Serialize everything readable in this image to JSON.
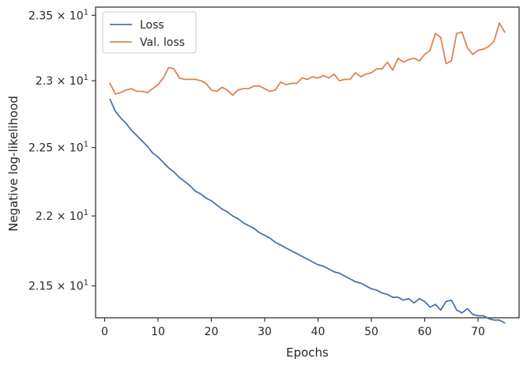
{
  "chart_data": {
    "type": "line",
    "title": "",
    "xlabel": "Epochs",
    "ylabel": "Negative log-likelihood",
    "xlim": [
      -1.7,
      77.7
    ],
    "ylim": [
      21.276,
      23.563
    ],
    "y_scale": "log",
    "grid": false,
    "legend_position": "top-left",
    "x_ticks": [
      0,
      10,
      20,
      30,
      40,
      50,
      60,
      70
    ],
    "x_tick_labels": [
      "0",
      "10",
      "20",
      "30",
      "40",
      "50",
      "60",
      "70"
    ],
    "y_ticks": [
      21.5,
      22.0,
      22.5,
      23.0,
      23.5
    ],
    "y_tick_labels": [
      {
        "base": "2.15",
        "exp": "1"
      },
      {
        "base": "2.2",
        "exp": "1"
      },
      {
        "base": "2.25",
        "exp": "1"
      },
      {
        "base": "2.3",
        "exp": "1"
      },
      {
        "base": "2.35",
        "exp": "1"
      }
    ],
    "x": [
      1,
      2,
      3,
      4,
      5,
      6,
      7,
      8,
      9,
      10,
      11,
      12,
      13,
      14,
      15,
      16,
      17,
      18,
      19,
      20,
      21,
      22,
      23,
      24,
      25,
      26,
      27,
      28,
      29,
      30,
      31,
      32,
      33,
      34,
      35,
      36,
      37,
      38,
      39,
      40,
      41,
      42,
      43,
      44,
      45,
      46,
      47,
      48,
      49,
      50,
      51,
      52,
      53,
      54,
      55,
      56,
      57,
      58,
      59,
      60,
      61,
      62,
      63,
      64,
      65,
      66,
      67,
      68,
      69,
      70,
      71,
      72,
      73,
      74,
      75
    ],
    "series": [
      {
        "name": "Loss",
        "color": "#4c72b0",
        "values": [
          22.86,
          22.77,
          22.72,
          22.68,
          22.63,
          22.59,
          22.55,
          22.51,
          22.46,
          22.43,
          22.39,
          22.35,
          22.32,
          22.28,
          22.25,
          22.22,
          22.18,
          22.16,
          22.13,
          22.11,
          22.08,
          22.05,
          22.03,
          22.0,
          21.98,
          21.95,
          21.93,
          21.91,
          21.88,
          21.86,
          21.84,
          21.81,
          21.79,
          21.77,
          21.75,
          21.73,
          21.71,
          21.69,
          21.67,
          21.65,
          21.64,
          21.62,
          21.6,
          21.59,
          21.57,
          21.55,
          21.53,
          21.52,
          21.5,
          21.48,
          21.47,
          21.45,
          21.44,
          21.42,
          21.42,
          21.4,
          21.41,
          21.38,
          21.41,
          21.39,
          21.35,
          21.37,
          21.33,
          21.39,
          21.4,
          21.33,
          21.31,
          21.34,
          21.3,
          21.29,
          21.29,
          21.27,
          21.26,
          21.26,
          21.24
        ]
      },
      {
        "name": "Val. loss",
        "color": "#dd8452",
        "values": [
          22.98,
          22.9,
          22.91,
          22.93,
          22.94,
          22.92,
          22.92,
          22.91,
          22.94,
          22.97,
          23.02,
          23.1,
          23.09,
          23.02,
          23.01,
          23.01,
          23.01,
          23.0,
          22.98,
          22.93,
          22.92,
          22.95,
          22.93,
          22.89,
          22.93,
          22.94,
          22.94,
          22.96,
          22.96,
          22.94,
          22.92,
          22.93,
          22.99,
          22.97,
          22.98,
          22.98,
          23.02,
          23.01,
          23.03,
          23.02,
          23.04,
          23.02,
          23.05,
          23.0,
          23.01,
          23.01,
          23.06,
          23.03,
          23.05,
          23.06,
          23.09,
          23.09,
          23.14,
          23.08,
          23.17,
          23.14,
          23.16,
          23.17,
          23.15,
          23.2,
          23.23,
          23.36,
          23.33,
          23.13,
          23.15,
          23.36,
          23.37,
          23.25,
          23.2,
          23.23,
          23.24,
          23.26,
          23.3,
          23.44,
          23.37
        ]
      }
    ]
  }
}
